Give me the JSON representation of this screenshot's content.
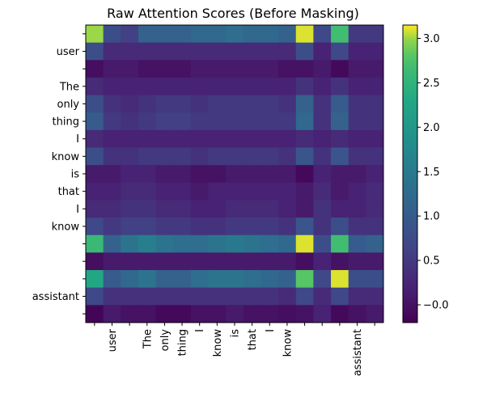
{
  "chart_data": {
    "type": "heatmap",
    "title": "Raw Attention Scores (Before Masking)",
    "xlabel": "",
    "ylabel": "",
    "tokens": [
      "",
      "user",
      "",
      "The",
      "only",
      "thing",
      "I",
      "know",
      "is",
      "that",
      "I",
      "know",
      "",
      "",
      "",
      "assistant",
      ""
    ],
    "values": [
      [
        3.0,
        0.8,
        0.6,
        1.1,
        1.1,
        1.1,
        1.2,
        1.2,
        1.3,
        1.2,
        1.2,
        1.1,
        3.1,
        0.7,
        2.7,
        0.5,
        0.5
      ],
      [
        0.8,
        0.3,
        0.3,
        0.3,
        0.3,
        0.3,
        0.3,
        0.3,
        0.3,
        0.3,
        0.3,
        0.3,
        0.8,
        0.2,
        0.7,
        0.2,
        0.2
      ],
      [
        -0.05,
        0.1,
        0.1,
        0.0,
        0.0,
        0.0,
        0.1,
        0.1,
        0.1,
        0.1,
        0.1,
        0.0,
        0.0,
        0.1,
        -0.1,
        0.1,
        0.1
      ],
      [
        0.3,
        0.2,
        0.2,
        0.2,
        0.2,
        0.2,
        0.2,
        0.2,
        0.2,
        0.2,
        0.2,
        0.2,
        0.4,
        0.2,
        0.4,
        0.2,
        0.2
      ],
      [
        0.8,
        0.4,
        0.3,
        0.4,
        0.5,
        0.5,
        0.4,
        0.5,
        0.5,
        0.5,
        0.5,
        0.4,
        1.1,
        0.4,
        1.0,
        0.4,
        0.4
      ],
      [
        1.0,
        0.5,
        0.4,
        0.5,
        0.6,
        0.6,
        0.5,
        0.5,
        0.5,
        0.5,
        0.5,
        0.5,
        1.2,
        0.4,
        1.1,
        0.4,
        0.4
      ],
      [
        0.3,
        0.2,
        0.2,
        0.2,
        0.2,
        0.2,
        0.2,
        0.2,
        0.2,
        0.2,
        0.2,
        0.2,
        0.3,
        0.2,
        0.3,
        0.2,
        0.2
      ],
      [
        0.8,
        0.4,
        0.4,
        0.5,
        0.5,
        0.5,
        0.4,
        0.5,
        0.5,
        0.5,
        0.5,
        0.4,
        0.9,
        0.4,
        0.9,
        0.4,
        0.4
      ],
      [
        0.1,
        0.1,
        0.2,
        0.2,
        0.1,
        0.1,
        0.0,
        0.0,
        0.1,
        0.1,
        0.1,
        0.1,
        -0.1,
        0.2,
        0.1,
        0.1,
        0.2
      ],
      [
        0.2,
        0.2,
        0.3,
        0.3,
        0.2,
        0.2,
        0.1,
        0.2,
        0.2,
        0.2,
        0.2,
        0.2,
        0.1,
        0.3,
        0.1,
        0.2,
        0.3
      ],
      [
        0.3,
        0.3,
        0.4,
        0.4,
        0.3,
        0.3,
        0.2,
        0.2,
        0.3,
        0.3,
        0.3,
        0.2,
        0.1,
        0.4,
        0.2,
        0.2,
        0.3
      ],
      [
        0.7,
        0.5,
        0.6,
        0.6,
        0.5,
        0.5,
        0.4,
        0.4,
        0.5,
        0.5,
        0.5,
        0.4,
        0.9,
        0.4,
        0.8,
        0.4,
        0.4
      ],
      [
        2.6,
        1.1,
        1.4,
        1.6,
        1.4,
        1.3,
        1.3,
        1.4,
        1.5,
        1.4,
        1.3,
        1.2,
        3.1,
        0.8,
        2.7,
        1.0,
        1.1
      ],
      [
        -0.05,
        0.1,
        0.1,
        0.1,
        0.1,
        0.1,
        0.1,
        0.1,
        0.1,
        0.1,
        0.1,
        0.1,
        -0.05,
        0.2,
        0.0,
        0.1,
        0.1
      ],
      [
        2.3,
        1.0,
        1.2,
        1.4,
        1.1,
        1.1,
        1.3,
        1.4,
        1.4,
        1.3,
        1.2,
        1.1,
        2.8,
        0.7,
        3.1,
        0.8,
        0.8
      ],
      [
        0.7,
        0.4,
        0.4,
        0.4,
        0.4,
        0.4,
        0.4,
        0.4,
        0.4,
        0.4,
        0.4,
        0.3,
        0.7,
        0.3,
        0.7,
        0.3,
        0.3
      ],
      [
        -0.15,
        0.1,
        0.0,
        0.0,
        -0.1,
        -0.1,
        0.0,
        0.0,
        0.1,
        0.0,
        0.0,
        -0.05,
        0.0,
        0.2,
        -0.1,
        0.0,
        0.1
      ]
    ],
    "colormap": "viridis",
    "colorbar": {
      "range": [
        -0.2,
        3.15
      ],
      "ticks": [
        -0.0,
        0.5,
        1.0,
        1.5,
        2.0,
        2.5,
        3.0
      ],
      "tick_labels": [
        "−0.0",
        "0.5",
        "1.0",
        "1.5",
        "2.0",
        "2.5",
        "3.0"
      ]
    },
    "grid": false,
    "legend": "none"
  }
}
